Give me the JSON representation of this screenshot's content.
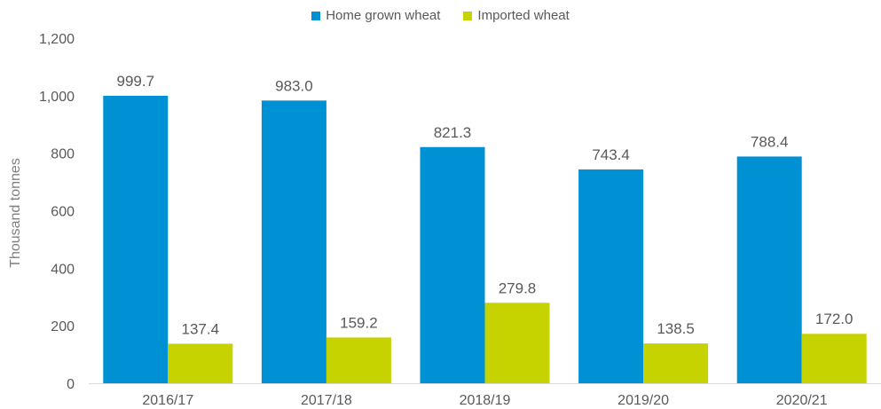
{
  "chart_data": {
    "type": "bar",
    "title": "",
    "xlabel": "",
    "ylabel": "Thousand tonnes",
    "ylim": [
      0,
      1200
    ],
    "yticks": [
      0,
      200,
      400,
      600,
      800,
      1000,
      1200
    ],
    "ytick_labels": [
      "0",
      "200",
      "400",
      "600",
      "800",
      "1,000",
      "1,200"
    ],
    "categories": [
      "2016/17",
      "2017/18",
      "2018/19",
      "2019/20",
      "2020/21"
    ],
    "legend_position": "top",
    "grid": false,
    "series": [
      {
        "name": "Home grown wheat",
        "color": "#0091d5",
        "values": [
          999.7,
          983.0,
          821.3,
          743.4,
          788.4
        ],
        "labels": [
          "999.7",
          "983.0",
          "821.3",
          "743.4",
          "788.4"
        ]
      },
      {
        "name": "Imported wheat",
        "color": "#c6d300",
        "values": [
          137.4,
          159.2,
          279.8,
          138.5,
          172.0
        ],
        "labels": [
          "137.4",
          "159.2",
          "279.8",
          "138.5",
          "172.0"
        ]
      }
    ]
  }
}
